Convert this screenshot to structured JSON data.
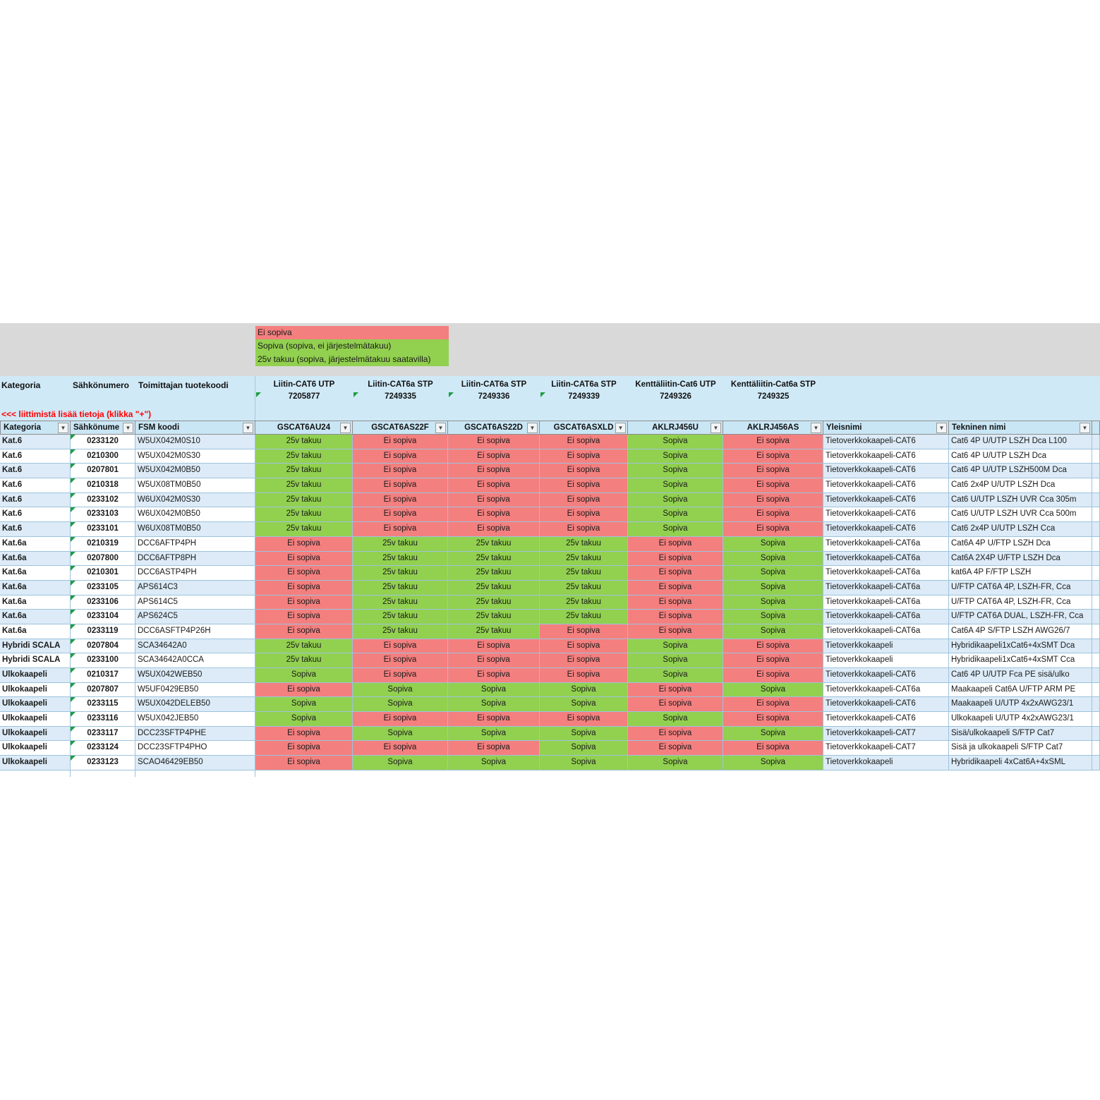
{
  "legend": {
    "items": [
      {
        "label": "Ei sopiva",
        "status": "red"
      },
      {
        "label": "Sopiva (sopiva, ei järjestelmätakuu)",
        "status": "green"
      },
      {
        "label": "25v takuu (sopiva, järjestelmätakuu saatavilla)",
        "status": "green"
      }
    ]
  },
  "header": {
    "left_columns": [
      "Kategoria",
      "Sähkönumero",
      "Toimittajan tuotekoodi"
    ],
    "connector_columns": [
      {
        "name": "Liitin-CAT6 UTP",
        "number": "7205877",
        "note": true
      },
      {
        "name": "Liitin-CAT6a STP",
        "number": "7249335",
        "note": true
      },
      {
        "name": "Liitin-CAT6a STP",
        "number": "7249336",
        "note": true
      },
      {
        "name": "Liitin-CAT6a STP",
        "number": "7249339",
        "note": true
      },
      {
        "name": "Kenttäliitin-Cat6 UTP",
        "number": "7249326",
        "note": false
      },
      {
        "name": "Kenttäliitin-Cat6a STP",
        "number": "7249325",
        "note": false
      }
    ],
    "info_link": "<<<  liittimistä lisää tietoja (klikka \"+\")"
  },
  "filter_row": {
    "columns": [
      "Kategoria",
      "Sähkönume",
      "FSM koodi",
      "GSCAT6AU24",
      "GSCAT6AS22F",
      "GSCAT6AS22D",
      "GSCAT6ASXLD",
      "AKLRJ456U",
      "AKLRJ456AS",
      "Yleisnimi",
      "Tekninen nimi"
    ]
  },
  "colors": {
    "not_suitable_fill": "#F47F7F",
    "suitable_fill": "#92D050",
    "header_band": "#CFE9F7",
    "row_alt": "#DCEBF7",
    "gray_band": "#D9D9D9",
    "info_text": "#FF0000",
    "note_triangle": "#1F9D40"
  },
  "rows": [
    {
      "kategoria": "Kat.6",
      "sahkonumero": "0233120",
      "fsm": "W5UX042M0S10",
      "statuses": [
        "25v takuu",
        "Ei sopiva",
        "Ei sopiva",
        "Ei sopiva",
        "Sopiva",
        "Ei sopiva"
      ],
      "yleisnimi": "Tietoverkkokaapeli-CAT6",
      "tekninen": "Cat6 4P U/UTP LSZH Dca L100"
    },
    {
      "kategoria": "Kat.6",
      "sahkonumero": "0210300",
      "fsm": "W5UX042M0S30",
      "statuses": [
        "25v takuu",
        "Ei sopiva",
        "Ei sopiva",
        "Ei sopiva",
        "Sopiva",
        "Ei sopiva"
      ],
      "yleisnimi": "Tietoverkkokaapeli-CAT6",
      "tekninen": "Cat6 4P U/UTP LSZH Dca"
    },
    {
      "kategoria": "Kat.6",
      "sahkonumero": "0207801",
      "fsm": "W5UX042M0B50",
      "statuses": [
        "25v takuu",
        "Ei sopiva",
        "Ei sopiva",
        "Ei sopiva",
        "Sopiva",
        "Ei sopiva"
      ],
      "yleisnimi": "Tietoverkkokaapeli-CAT6",
      "tekninen": "Cat6 4P U/UTP LSZH500M Dca"
    },
    {
      "kategoria": "Kat.6",
      "sahkonumero": "0210318",
      "fsm": "W5UX08TM0B50",
      "statuses": [
        "25v takuu",
        "Ei sopiva",
        "Ei sopiva",
        "Ei sopiva",
        "Sopiva",
        "Ei sopiva"
      ],
      "yleisnimi": "Tietoverkkokaapeli-CAT6",
      "tekninen": "Cat6 2x4P U/UTP LSZH Dca"
    },
    {
      "kategoria": "Kat.6",
      "sahkonumero": "0233102",
      "fsm": "W6UX042M0S30",
      "statuses": [
        "25v takuu",
        "Ei sopiva",
        "Ei sopiva",
        "Ei sopiva",
        "Sopiva",
        "Ei sopiva"
      ],
      "yleisnimi": "Tietoverkkokaapeli-CAT6",
      "tekninen": "Cat6 U/UTP LSZH UVR Cca 305m"
    },
    {
      "kategoria": "Kat.6",
      "sahkonumero": "0233103",
      "fsm": "W6UX042M0B50",
      "statuses": [
        "25v takuu",
        "Ei sopiva",
        "Ei sopiva",
        "Ei sopiva",
        "Sopiva",
        "Ei sopiva"
      ],
      "yleisnimi": "Tietoverkkokaapeli-CAT6",
      "tekninen": "Cat6 U/UTP LSZH UVR Cca 500m"
    },
    {
      "kategoria": "Kat.6",
      "sahkonumero": "0233101",
      "fsm": "W6UX08TM0B50",
      "statuses": [
        "25v takuu",
        "Ei sopiva",
        "Ei sopiva",
        "Ei sopiva",
        "Sopiva",
        "Ei sopiva"
      ],
      "yleisnimi": "Tietoverkkokaapeli-CAT6",
      "tekninen": "Cat6 2x4P U/UTP LSZH Cca"
    },
    {
      "kategoria": "Kat.6a",
      "sahkonumero": "0210319",
      "fsm": "DCC6AFTP4PH",
      "statuses": [
        "Ei sopiva",
        "25v takuu",
        "25v takuu",
        "25v takuu",
        "Ei sopiva",
        "Sopiva"
      ],
      "yleisnimi": "Tietoverkkokaapeli-CAT6a",
      "tekninen": "Cat6A 4P U/FTP LSZH Dca"
    },
    {
      "kategoria": "Kat.6a",
      "sahkonumero": "0207800",
      "fsm": "DCC6AFTP8PH",
      "statuses": [
        "Ei sopiva",
        "25v takuu",
        "25v takuu",
        "25v takuu",
        "Ei sopiva",
        "Sopiva"
      ],
      "yleisnimi": "Tietoverkkokaapeli-CAT6a",
      "tekninen": "Cat6A 2X4P U/FTP LSZH Dca"
    },
    {
      "kategoria": "Kat.6a",
      "sahkonumero": "0210301",
      "fsm": "DCC6ASTP4PH",
      "statuses": [
        "Ei sopiva",
        "25v takuu",
        "25v takuu",
        "25v takuu",
        "Ei sopiva",
        "Sopiva"
      ],
      "yleisnimi": "Tietoverkkokaapeli-CAT6a",
      "tekninen": "kat6A 4P F/FTP LSZH"
    },
    {
      "kategoria": "Kat.6a",
      "sahkonumero": "0233105",
      "fsm": "APS614C3",
      "statuses": [
        "Ei sopiva",
        "25v takuu",
        "25v takuu",
        "25v takuu",
        "Ei sopiva",
        "Sopiva"
      ],
      "yleisnimi": "Tietoverkkokaapeli-CAT6a",
      "tekninen": "U/FTP CAT6A 4P, LSZH-FR, Cca"
    },
    {
      "kategoria": "Kat.6a",
      "sahkonumero": "0233106",
      "fsm": "APS614C5",
      "statuses": [
        "Ei sopiva",
        "25v takuu",
        "25v takuu",
        "25v takuu",
        "Ei sopiva",
        "Sopiva"
      ],
      "yleisnimi": "Tietoverkkokaapeli-CAT6a",
      "tekninen": "U/FTP CAT6A 4P, LSZH-FR, Cca"
    },
    {
      "kategoria": "Kat.6a",
      "sahkonumero": "0233104",
      "fsm": "APS624C5",
      "statuses": [
        "Ei sopiva",
        "25v takuu",
        "25v takuu",
        "25v takuu",
        "Ei sopiva",
        "Sopiva"
      ],
      "yleisnimi": "Tietoverkkokaapeli-CAT6a",
      "tekninen": "U/FTP CAT6A DUAL, LSZH-FR, Cca"
    },
    {
      "kategoria": "Kat.6a",
      "sahkonumero": "0233119",
      "fsm": "DCC6ASFTP4P26H",
      "statuses": [
        "Ei sopiva",
        "25v takuu",
        "25v takuu",
        "Ei sopiva",
        "Ei sopiva",
        "Sopiva"
      ],
      "yleisnimi": "Tietoverkkokaapeli-CAT6a",
      "tekninen": "Cat6A 4P S/FTP LSZH AWG26/7"
    },
    {
      "kategoria": "Hybridi SCALA",
      "sahkonumero": "0207804",
      "fsm": "SCA34642A0",
      "statuses": [
        "25v takuu",
        "Ei sopiva",
        "Ei sopiva",
        "Ei sopiva",
        "Sopiva",
        "Ei sopiva"
      ],
      "yleisnimi": "Tietoverkkokaapeli",
      "tekninen": "Hybridikaapeli1xCat6+4xSMT Dca"
    },
    {
      "kategoria": "Hybridi SCALA",
      "sahkonumero": "0233100",
      "fsm": "SCA34642A0CCA",
      "statuses": [
        "25v takuu",
        "Ei sopiva",
        "Ei sopiva",
        "Ei sopiva",
        "Sopiva",
        "Ei sopiva"
      ],
      "yleisnimi": "Tietoverkkokaapeli",
      "tekninen": "Hybridikaapeli1xCat6+4xSMT Cca"
    },
    {
      "kategoria": "Ulkokaapeli",
      "sahkonumero": "0210317",
      "fsm": "W5UX042WEB50",
      "statuses": [
        "Sopiva",
        "Ei sopiva",
        "Ei sopiva",
        "Ei sopiva",
        "Sopiva",
        "Ei sopiva"
      ],
      "yleisnimi": "Tietoverkkokaapeli-CAT6",
      "tekninen": "Cat6 4P U/UTP Fca PE sisä/ulko"
    },
    {
      "kategoria": "Ulkokaapeli",
      "sahkonumero": "0207807",
      "fsm": "W5UF0429EB50",
      "statuses": [
        "Ei sopiva",
        "Sopiva",
        "Sopiva",
        "Sopiva",
        "Ei sopiva",
        "Sopiva"
      ],
      "yleisnimi": "Tietoverkkokaapeli-CAT6a",
      "tekninen": "Maakaapeli Cat6A U/FTP ARM PE"
    },
    {
      "kategoria": "Ulkokaapeli",
      "sahkonumero": "0233115",
      "fsm": "W5UX042DELEB50",
      "statuses": [
        "Sopiva",
        "Sopiva",
        "Sopiva",
        "Sopiva",
        "Ei sopiva",
        "Ei sopiva"
      ],
      "yleisnimi": "Tietoverkkokaapeli-CAT6",
      "tekninen": "Maakaapeli U/UTP 4x2xAWG23/1"
    },
    {
      "kategoria": "Ulkokaapeli",
      "sahkonumero": "0233116",
      "fsm": "W5UX042JEB50",
      "statuses": [
        "Sopiva",
        "Ei sopiva",
        "Ei sopiva",
        "Ei sopiva",
        "Sopiva",
        "Ei sopiva"
      ],
      "yleisnimi": "Tietoverkkokaapeli-CAT6",
      "tekninen": "Ulkokaapeli U/UTP 4x2xAWG23/1"
    },
    {
      "kategoria": "Ulkokaapeli",
      "sahkonumero": "0233117",
      "fsm": "DCC23SFTP4PHE",
      "statuses": [
        "Ei sopiva",
        "Sopiva",
        "Sopiva",
        "Sopiva",
        "Ei sopiva",
        "Sopiva"
      ],
      "yleisnimi": "Tietoverkkokaapeli-CAT7",
      "tekninen": "Sisä/ulkokaapeli S/FTP Cat7"
    },
    {
      "kategoria": "Ulkokaapeli",
      "sahkonumero": "0233124",
      "fsm": "DCC23SFTP4PHO",
      "statuses": [
        "Ei sopiva",
        "Ei sopiva",
        "Ei sopiva",
        "Sopiva",
        "Ei sopiva",
        "Ei sopiva"
      ],
      "yleisnimi": "Tietoverkkokaapeli-CAT7",
      "tekninen": "Sisä ja ulkokaapeli S/FTP Cat7"
    },
    {
      "kategoria": "Ulkokaapeli",
      "sahkonumero": "0233123",
      "fsm": "SCAO46429EB50",
      "statuses": [
        "Ei sopiva",
        "Sopiva",
        "Sopiva",
        "Sopiva",
        "Sopiva",
        "Sopiva"
      ],
      "yleisnimi": "Tietoverkkokaapeli",
      "tekninen": "Hybridikaapeli 4xCat6A+4xSML"
    }
  ]
}
